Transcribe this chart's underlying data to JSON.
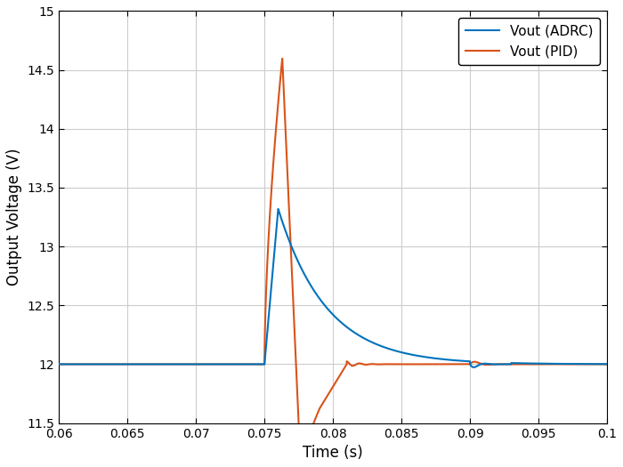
{
  "title": "",
  "xlabel": "Time (s)",
  "ylabel": "Output Voltage (V)",
  "xlim": [
    0.06,
    0.1
  ],
  "ylim": [
    11.5,
    15
  ],
  "yticks": [
    11.5,
    12.0,
    12.5,
    13.0,
    13.5,
    14.0,
    14.5,
    15.0
  ],
  "xticks": [
    0.06,
    0.065,
    0.07,
    0.075,
    0.08,
    0.085,
    0.09,
    0.095,
    0.1
  ],
  "adrc_color": "#0072BD",
  "pid_color": "#D95319",
  "legend_labels": [
    "Vout (ADRC)",
    "Vout (PID)"
  ],
  "background_color": "#FFFFFF",
  "grid_color": "#CCCCCC",
  "linewidth": 1.5,
  "t1": 0.075,
  "t2": 0.09,
  "steady_state": 12.0,
  "adrc_peak": 13.32,
  "pid_peak": 14.6,
  "pid_dip": 11.62
}
